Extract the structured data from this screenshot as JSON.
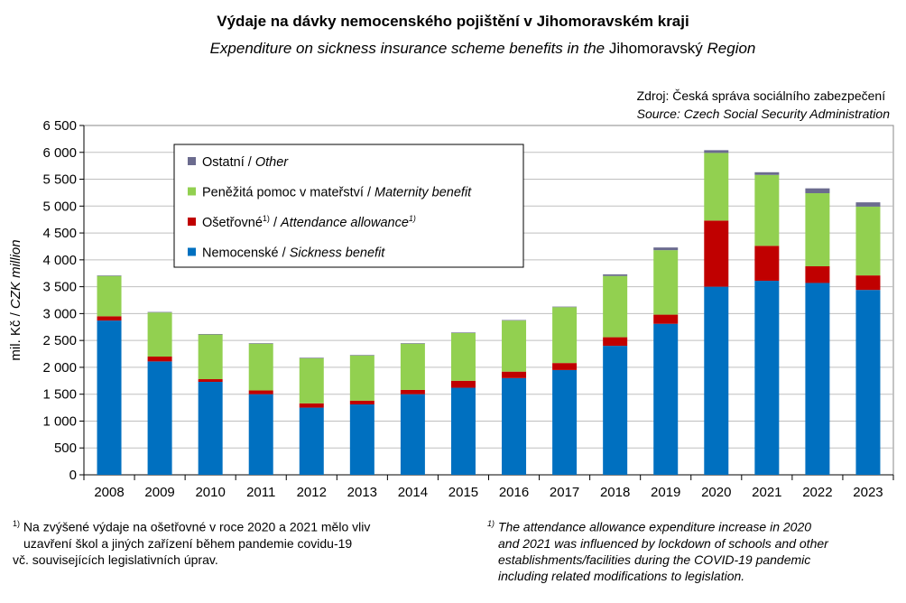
{
  "chart_data": {
    "type": "bar",
    "stacked": true,
    "title": "Výdaje na dávky nemocenského pojištění v Jihomoravském kraji",
    "subtitle_prefix": "Expenditure on sickness insurance scheme benefits in the",
    "subtitle_region": "Jihomoravský",
    "subtitle_suffix": "Region",
    "ylabel_cz": "mil. Kč",
    "ylabel_sep": " / ",
    "ylabel_en": "CZK million",
    "ylim": [
      0,
      6500
    ],
    "yticks": [
      0,
      500,
      1000,
      1500,
      2000,
      2500,
      3000,
      3500,
      4000,
      4500,
      5000,
      5500,
      6000,
      6500
    ],
    "ytick_labels": [
      "0",
      "500",
      "1 000",
      "1 500",
      "2 000",
      "2 500",
      "3 000",
      "3 500",
      "4 000",
      "4 500",
      "5 000",
      "5 500",
      "6 000",
      "6 500"
    ],
    "grid": true,
    "categories": [
      "2008",
      "2009",
      "2010",
      "2011",
      "2012",
      "2013",
      "2014",
      "2015",
      "2016",
      "2017",
      "2018",
      "2019",
      "2020",
      "2021",
      "2022",
      "2023"
    ],
    "series": [
      {
        "key": "sickness",
        "name_cz": "Nemocenské",
        "name_en": "Sickness benefit",
        "color": "#0070C0",
        "values": [
          2870,
          2110,
          1730,
          1500,
          1250,
          1310,
          1500,
          1620,
          1800,
          1950,
          2400,
          2810,
          3500,
          3610,
          3570,
          3440
        ]
      },
      {
        "key": "attendance",
        "name_cz": "Ošetřovné",
        "name_en": "Attendance allowance",
        "sup": "1)",
        "color": "#C00000",
        "values": [
          80,
          90,
          50,
          70,
          80,
          70,
          80,
          130,
          120,
          130,
          160,
          170,
          1230,
          650,
          310,
          270
        ]
      },
      {
        "key": "maternity",
        "name_cz": "Peněžitá pomoc v mateřství",
        "name_en": "Maternity benefit",
        "color": "#92D050",
        "values": [
          750,
          820,
          830,
          870,
          840,
          840,
          860,
          890,
          950,
          1040,
          1140,
          1200,
          1260,
          1320,
          1360,
          1280
        ]
      },
      {
        "key": "other",
        "name_cz": "Ostatní",
        "name_en": "Other",
        "color": "#6B6B8E",
        "values": [
          10,
          10,
          10,
          10,
          10,
          10,
          10,
          10,
          10,
          10,
          30,
          50,
          50,
          50,
          90,
          80
        ]
      }
    ]
  },
  "source": {
    "cz": "Zdroj: Česká správa sociálního zabezpečení",
    "en": "Source: Czech Social Security Administration"
  },
  "footnotes": {
    "mark": "1)",
    "cz_line1": "Na zvýšené výdaje na ošetřovné v roce 2020 a 2021 mělo vliv",
    "cz_line2": "uzavření škol a jiných zařízení během pandemie covidu-19",
    "cz_line3": "vč. souvisejících legislativních úprav.",
    "en_line1": "The attendance allowance expenditure increase in 2020",
    "en_line2": "and 2021 was influenced by lockdown of schools and other",
    "en_line3": "establishments/facilities during the COVID-19 pandemic",
    "en_line4": "including related modifications to legislation."
  }
}
